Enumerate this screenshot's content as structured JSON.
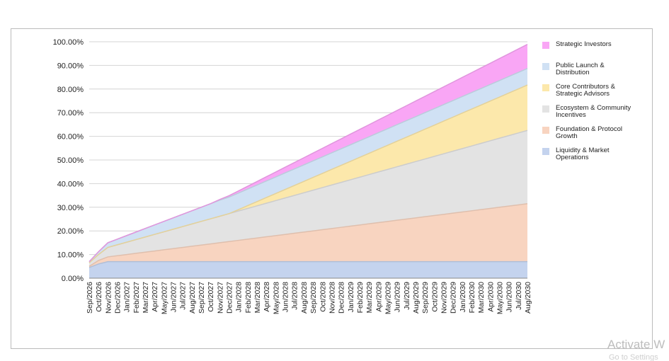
{
  "chart_data": {
    "type": "stacked-area",
    "categories": [
      "Sep/2026",
      "Oct/2026",
      "Nov/2026",
      "Dec/2026",
      "Jan/2027",
      "Feb/2027",
      "Mar/2027",
      "Apr/2027",
      "May/2027",
      "Jun/2027",
      "Jul/2027",
      "Aug/2027",
      "Sep/2027",
      "Oct/2027",
      "Nov/2027",
      "Dec/2027",
      "Jan/2028",
      "Feb/2028",
      "Mar/2028",
      "Apr/2028",
      "May/2028",
      "Jun/2028",
      "Jul/2028",
      "Aug/2028",
      "Sep/2028",
      "Oct/2028",
      "Nov/2028",
      "Dec/2028",
      "Jan/2029",
      "Feb/2029",
      "Mar/2029",
      "Apr/2029",
      "May/2029",
      "Jun/2029",
      "Jul/2029",
      "Aug/2029",
      "Sep/2029",
      "Oct/2029",
      "Nov/2029",
      "Dec/2029",
      "Jan/2030",
      "Feb/2030",
      "Mar/2030",
      "Apr/2030",
      "May/2030",
      "Jun/2030",
      "Jul/2030",
      "Aug/2030"
    ],
    "series": [
      {
        "name": "Liquidity & Market Operations",
        "color": "#c4d3ee",
        "values": [
          4.5,
          6,
          7,
          7,
          7,
          7,
          7,
          7,
          7,
          7,
          7,
          7,
          7,
          7,
          7,
          7,
          7,
          7,
          7,
          7,
          7,
          7,
          7,
          7,
          7,
          7,
          7,
          7,
          7,
          7,
          7,
          7,
          7,
          7,
          7,
          7,
          7,
          7,
          7,
          7,
          7,
          7,
          7,
          7,
          7,
          7,
          7,
          7
        ]
      },
      {
        "name": "Foundation & Protocol Growth",
        "color": "#f8d4c0",
        "values": [
          0.5,
          1.5,
          2,
          2.5,
          3,
          3.5,
          4,
          4.5,
          5,
          5.5,
          6,
          6.5,
          7,
          7.5,
          8,
          8.5,
          9,
          9.5,
          10,
          10.5,
          11,
          11.5,
          12,
          12.5,
          13,
          13.5,
          14,
          14.5,
          15,
          15.5,
          16,
          16.5,
          17,
          17.5,
          18,
          18.5,
          19,
          19.5,
          20,
          20.5,
          21,
          21.5,
          22,
          22.5,
          23,
          23.5,
          24,
          24.5
        ]
      },
      {
        "name": "Ecosystem & Community Incentives",
        "color": "#e3e3e3",
        "values": [
          1.5,
          2.5,
          4,
          4.6,
          5.2,
          5.8,
          6.4,
          7,
          7.6,
          8.2,
          8.8,
          9.4,
          10,
          10.6,
          11.2,
          11.8,
          12.4,
          13,
          13.6,
          14.2,
          14.8,
          15.4,
          16,
          16.6,
          17.2,
          17.8,
          18.4,
          19,
          19.6,
          20.2,
          20.8,
          21.4,
          22,
          22.6,
          23.2,
          23.8,
          24.4,
          25,
          25.6,
          26.2,
          26.8,
          27.4,
          28,
          28.6,
          29.2,
          29.8,
          30.4,
          31
        ]
      },
      {
        "name": "Core Contributors & Strategic Advisors",
        "color": "#fce8ab",
        "values": [
          0,
          0,
          0,
          0,
          0,
          0,
          0,
          0,
          0,
          0,
          0,
          0,
          0,
          0,
          0,
          0,
          0.6,
          1.2,
          1.8,
          2.4,
          3,
          3.6,
          4.2,
          4.8,
          5.4,
          6,
          6.6,
          7.2,
          7.8,
          8.4,
          9,
          9.6,
          10.2,
          10.8,
          11.4,
          12,
          12.6,
          13.2,
          13.8,
          14.4,
          15,
          15.6,
          16.2,
          16.8,
          17.4,
          18,
          18.6,
          19.2
        ]
      },
      {
        "name": "Public Launch & Distribution",
        "color": "#d0e1f4",
        "values": [
          0.5,
          1.2,
          2,
          2.4,
          2.8,
          3.2,
          3.6,
          4,
          4.4,
          4.8,
          5.2,
          5.6,
          6,
          6.4,
          6.8,
          7,
          7,
          7,
          7,
          7,
          7,
          7,
          7,
          7,
          7,
          7,
          7,
          7,
          7,
          7,
          7,
          7,
          7,
          7,
          7,
          7,
          7,
          7,
          7,
          7,
          7,
          7,
          7,
          7,
          7,
          7,
          7,
          7
        ]
      },
      {
        "name": "Strategic Investors",
        "color": "#f9a6f5",
        "values": [
          0,
          0,
          0,
          0,
          0,
          0,
          0,
          0,
          0,
          0,
          0,
          0,
          0,
          0,
          0.3,
          0.6,
          0.9,
          1.2,
          1.5,
          1.8,
          2.1,
          2.4,
          2.7,
          3,
          3.3,
          3.6,
          3.9,
          4.2,
          4.5,
          4.8,
          5.1,
          5.4,
          5.7,
          6,
          6.3,
          6.6,
          6.9,
          7.2,
          7.5,
          7.8,
          8.1,
          8.4,
          8.7,
          9,
          9.3,
          9.6,
          9.9,
          10.2
        ]
      }
    ],
    "ylim": [
      0,
      100
    ],
    "yticks": [
      {
        "value": 0,
        "label": "0.00%"
      },
      {
        "value": 10,
        "label": "10.00%"
      },
      {
        "value": 20,
        "label": "20.00%"
      },
      {
        "value": 30,
        "label": "30.00%"
      },
      {
        "value": 40,
        "label": "40.00%"
      },
      {
        "value": 50,
        "label": "50.00%"
      },
      {
        "value": 60,
        "label": "60.00%"
      },
      {
        "value": 70,
        "label": "70.00%"
      },
      {
        "value": 80,
        "label": "80.00%"
      },
      {
        "value": 90,
        "label": "90.00%"
      },
      {
        "value": 100,
        "label": "100.00%"
      }
    ],
    "grid": true
  },
  "watermark": {
    "title": "Activate W",
    "subtitle": "Go to Settings"
  }
}
